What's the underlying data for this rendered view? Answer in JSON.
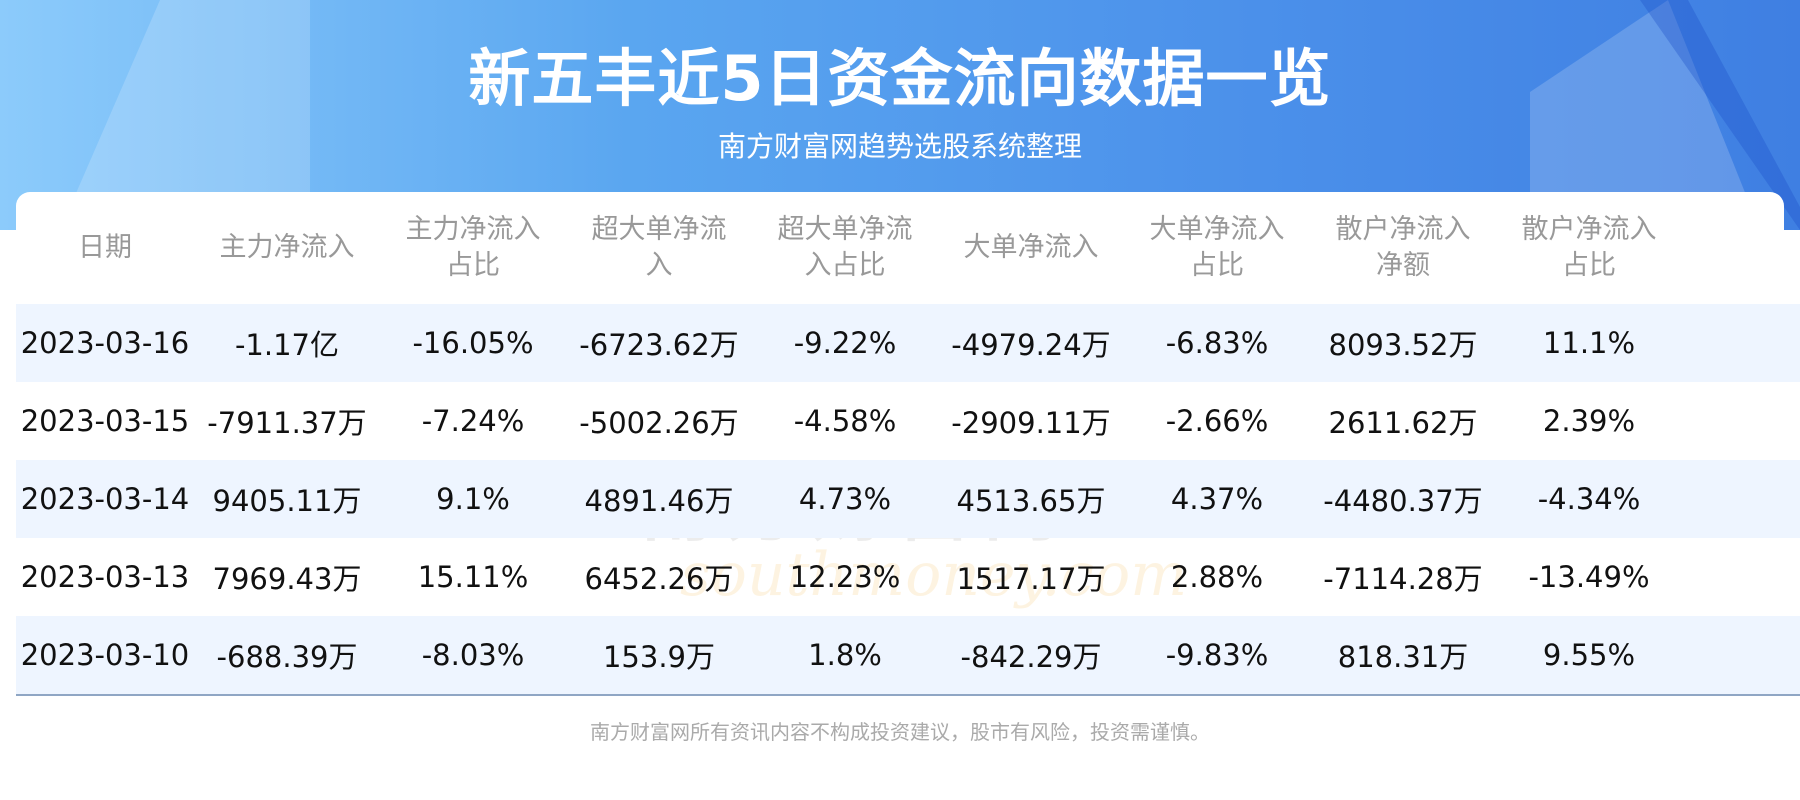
{
  "header": {
    "title": "新五丰近5日资金流向数据一览",
    "subtitle": "南方财富网趋势选股系统整理"
  },
  "watermark": {
    "cn": "南方财富网",
    "en": "southmoney.com"
  },
  "table": {
    "columns": [
      "日期",
      "主力净流入",
      "主力净流入占比",
      "超大单净流入",
      "超大单净流入占比",
      "大单净流入",
      "大单净流入占比",
      "散户净流入净额",
      "散户净流入占比"
    ],
    "rows": [
      [
        "2023-03-16",
        "-1.17亿",
        "-16.05%",
        "-6723.62万",
        "-9.22%",
        "-4979.24万",
        "-6.83%",
        "8093.52万",
        "11.1%"
      ],
      [
        "2023-03-15",
        "-7911.37万",
        "-7.24%",
        "-5002.26万",
        "-4.58%",
        "-2909.11万",
        "-2.66%",
        "2611.62万",
        "2.39%"
      ],
      [
        "2023-03-14",
        "9405.11万",
        "9.1%",
        "4891.46万",
        "4.73%",
        "4513.65万",
        "4.37%",
        "-4480.37万",
        "-4.34%"
      ],
      [
        "2023-03-13",
        "7969.43万",
        "15.11%",
        "6452.26万",
        "12.23%",
        "1517.17万",
        "2.88%",
        "-7114.28万",
        "-13.49%"
      ],
      [
        "2023-03-10",
        "-688.39万",
        "-8.03%",
        "153.9万",
        "1.8%",
        "-842.29万",
        "-9.83%",
        "818.31万",
        "9.55%"
      ]
    ]
  },
  "footer": {
    "disclaimer": "南方财富网所有资讯内容不构成投资建议，股市有风险，投资需谨慎。"
  },
  "colors": {
    "header_blue": "#4b90ea",
    "row_alt": "#eef5ff"
  }
}
